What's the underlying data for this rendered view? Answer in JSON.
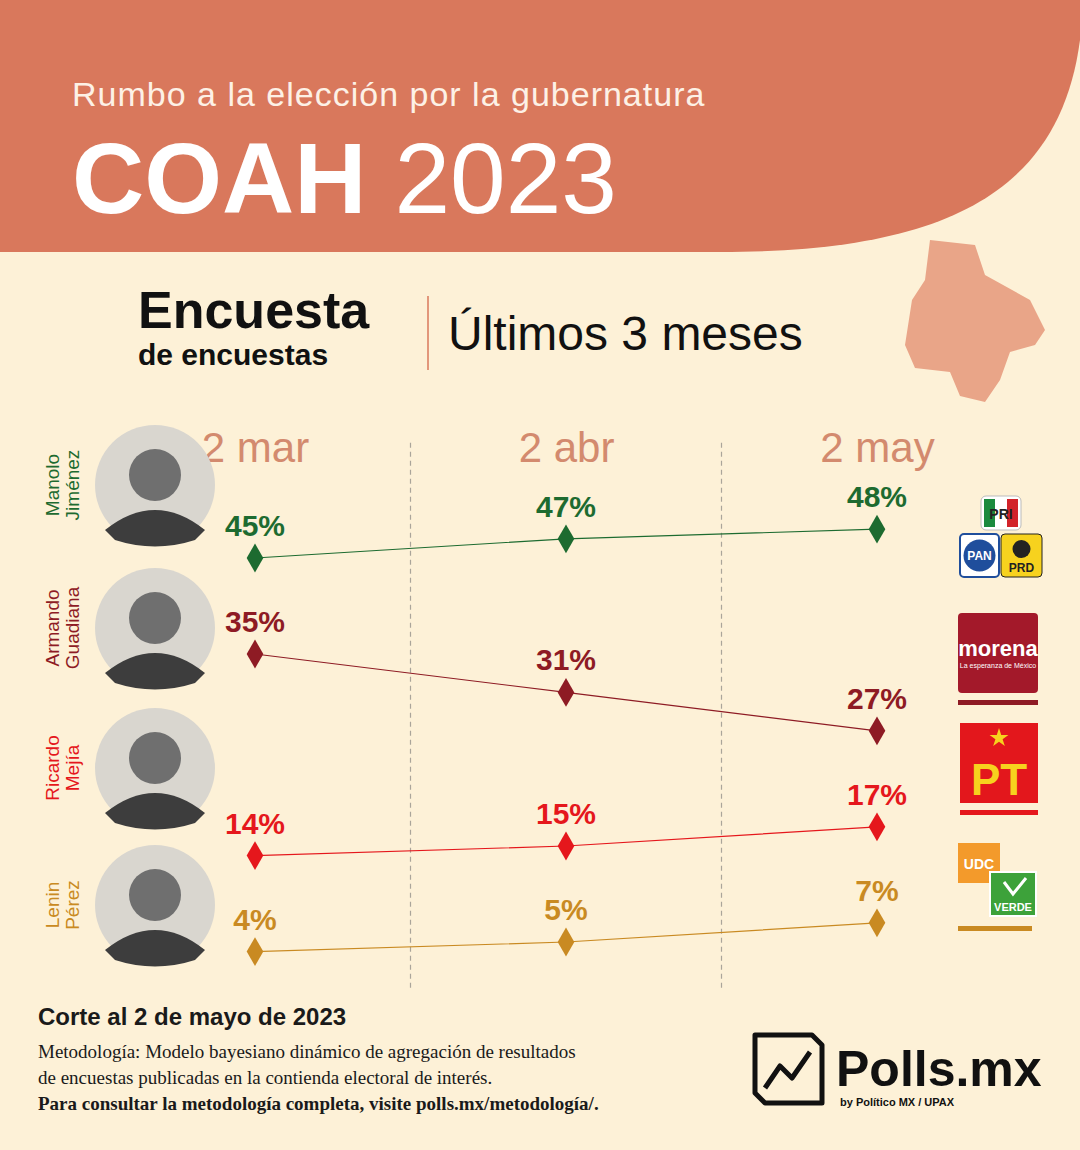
{
  "chart_data": {
    "type": "line",
    "subtitle": "Rumbo a la elección por la gubernatura",
    "title": [
      "COAH",
      "2023"
    ],
    "panel_title": [
      "Encuesta",
      "de encuestas"
    ],
    "panel_subtitle": "Últimos 3 meses",
    "categories": [
      "2 mar",
      "2 abr",
      "2 may"
    ],
    "ylim": [
      0,
      57
    ],
    "tick_labels": "x",
    "data_labels": true,
    "marker": "diamond",
    "series": [
      {
        "name": "Manolo Jiménez",
        "color": "#1d6b30",
        "values": [
          45,
          47,
          48
        ],
        "value_labels": [
          "45%",
          "47%",
          "48%"
        ],
        "logo_texts": [
          "PRI",
          "PAN",
          "PRD"
        ]
      },
      {
        "name": "Armando Guadiana",
        "color": "#8e1b24",
        "values": [
          35,
          31,
          27
        ],
        "value_labels": [
          "35%",
          "31%",
          "27%"
        ],
        "logo_texts": [
          "morena",
          "La esperanza de México"
        ]
      },
      {
        "name": "Ricardo Mejía",
        "color": "#e5171c",
        "values": [
          14,
          15,
          17
        ],
        "value_labels": [
          "14%",
          "15%",
          "17%"
        ],
        "logo_texts": [
          "PT"
        ]
      },
      {
        "name": "Lenin Pérez",
        "color": "#c98a22",
        "values": [
          4,
          5,
          7
        ],
        "value_labels": [
          "4%",
          "5%",
          "7%"
        ],
        "logo_texts": [
          "UDC",
          "VERDE"
        ]
      }
    ],
    "cutoff": "Corte al 2 de mayo de 2023",
    "methodology": [
      "Metodología: Modelo bayesiano dinámico de agregación de resultados",
      "de encuestas publicadas en la contienda electoral de interés."
    ],
    "methodology_link": "Para consultar la metodología completa, visite polls.mx/metodología/.",
    "source": "Polls.mx",
    "source_credit": "by Político MX / UPAX"
  }
}
